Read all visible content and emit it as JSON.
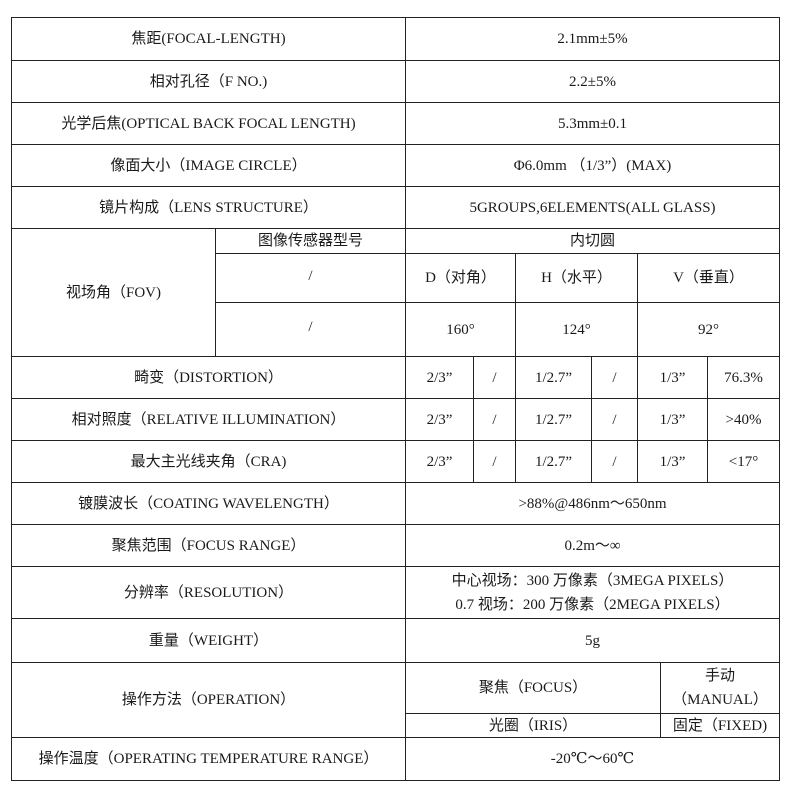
{
  "rows": [
    {
      "label": "焦距(FOCAL-LENGTH)",
      "value": "2.1mm±5%"
    },
    {
      "label": "相对孔径（F NO.)",
      "value": "2.2±5%"
    },
    {
      "label": "光学后焦(OPTICAL BACK FOCAL LENGTH)",
      "value": "5.3mm±0.1"
    },
    {
      "label": "像面大小（IMAGE CIRCLE）",
      "value": "Φ6.0mm （1/3”）(MAX)"
    },
    {
      "label": "镜片构成（LENS STRUCTURE）",
      "value": "5GROUPS,6ELEMENTS(ALL GLASS)"
    }
  ],
  "fov": {
    "label": "视场角（FOV)",
    "sensor_header": "图像传感器型号",
    "circle_header": "内切圆",
    "slash1": "/",
    "slash2": "/",
    "d_label": "D（对角）",
    "h_label": "H（水平）",
    "v_label": "V（垂直）",
    "d_value": "160°",
    "h_value": "124°",
    "v_value": "92°"
  },
  "sensor_rows": [
    {
      "label": "畸变（DISTORTION）",
      "s1": "2/3”",
      "v1": "/",
      "s2": "1/2.7”",
      "v2": "/",
      "s3": "1/3”",
      "v3": "76.3%"
    },
    {
      "label": "相对照度（RELATIVE ILLUMINATION）",
      "s1": "2/3”",
      "v1": "/",
      "s2": "1/2.7”",
      "v2": "/",
      "s3": "1/3”",
      "v3": ">40%"
    },
    {
      "label": "最大主光线夹角（CRA)",
      "s1": "2/3”",
      "v1": "/",
      "s2": "1/2.7”",
      "v2": "/",
      "s3": "1/3”",
      "v3": "<17°"
    }
  ],
  "coating": {
    "label": "镀膜波长（COATING WAVELENGTH）",
    "value": ">88%@486nm～650nm"
  },
  "focus_range": {
    "label": "聚焦范围（FOCUS RANGE）",
    "value": "0.2m～∞"
  },
  "resolution": {
    "label": "分辨率（RESOLUTION）",
    "line1": "中心视场：300 万像素（3MEGA PIXELS）",
    "line2": "0.7 视场：200 万像素（2MEGA PIXELS）"
  },
  "weight": {
    "label": "重量（WEIGHT）",
    "value": "5g"
  },
  "operation": {
    "label": "操作方法（OPERATION）",
    "focus_label": "聚焦（FOCUS）",
    "focus_line1": "手动",
    "focus_line2": "（MANUAL）",
    "iris_label": "光圈（IRIS）",
    "iris_value": "固定（FIXED)"
  },
  "temperature": {
    "label": "操作温度（OPERATING TEMPERATURE RANGE）",
    "value": "-20℃～60℃"
  }
}
